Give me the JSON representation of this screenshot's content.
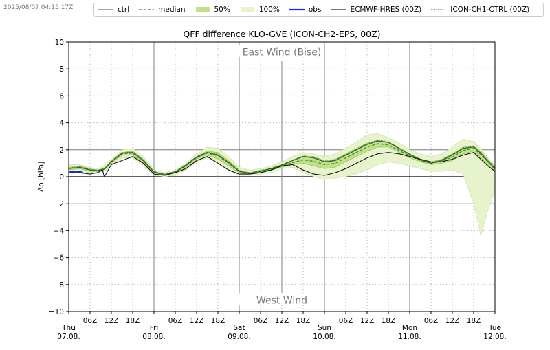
{
  "timestamp": "2025/08/07 04:15:17Z",
  "legend": [
    {
      "key": "ctrl",
      "label": "ctrl",
      "style": "line",
      "color": "#4a8a4a"
    },
    {
      "key": "median",
      "label": "median",
      "style": "dashed",
      "color": "#3a8a2a"
    },
    {
      "key": "p50",
      "label": "50%",
      "style": "patch",
      "color": "#c2e08a"
    },
    {
      "key": "p100",
      "label": "100%",
      "style": "patch",
      "color": "#e6f3cc"
    },
    {
      "key": "obs",
      "label": "obs",
      "style": "line",
      "color": "#1f2fbf"
    },
    {
      "key": "ecmwf",
      "label": "ECMWF-HRES (00Z)",
      "style": "line",
      "color": "#222222"
    },
    {
      "key": "ich1",
      "label": "ICON-CH1-CTRL (00Z)",
      "style": "dotted",
      "color": "#666666"
    }
  ],
  "chart_data": {
    "type": "line",
    "title": "QFF difference KLO-GVE (ICON-CH2-EPS, 00Z)",
    "ylabel": "Δp [hPa]",
    "xlabel": "",
    "ylim": [
      -10,
      10
    ],
    "yticks": [
      -10,
      -8,
      -6,
      -4,
      -2,
      0,
      2,
      4,
      6,
      8,
      10
    ],
    "xlim": [
      0,
      120
    ],
    "x_units": "hours after Thu 07.08. 00Z",
    "day_ticks": [
      {
        "x": 0,
        "day": "Thu",
        "date": "07.08."
      },
      {
        "x": 24,
        "day": "Fri",
        "date": "08.08."
      },
      {
        "x": 48,
        "day": "Sat",
        "date": "09.08."
      },
      {
        "x": 72,
        "day": "Sun",
        "date": "10.08."
      },
      {
        "x": 96,
        "day": "Mon",
        "date": "11.08."
      },
      {
        "x": 120,
        "day": "Tue",
        "date": "12.08."
      }
    ],
    "hour_ticks": [
      {
        "x": 6,
        "label": "06Z"
      },
      {
        "x": 12,
        "label": "12Z"
      },
      {
        "x": 18,
        "label": "18Z"
      },
      {
        "x": 30,
        "label": "06Z"
      },
      {
        "x": 36,
        "label": "12Z"
      },
      {
        "x": 42,
        "label": "18Z"
      },
      {
        "x": 54,
        "label": "06Z"
      },
      {
        "x": 60,
        "label": "12Z"
      },
      {
        "x": 66,
        "label": "18Z"
      },
      {
        "x": 78,
        "label": "06Z"
      },
      {
        "x": 84,
        "label": "12Z"
      },
      {
        "x": 90,
        "label": "18Z"
      },
      {
        "x": 102,
        "label": "06Z"
      },
      {
        "x": 108,
        "label": "12Z"
      },
      {
        "x": 114,
        "label": "18Z"
      }
    ],
    "annotations": [
      {
        "text": "East Wind (Bise)",
        "x": 60,
        "y": 9.2
      },
      {
        "text": "West Wind",
        "x": 60,
        "y": -9.2
      }
    ],
    "reference_lines": [
      2,
      0,
      -2
    ],
    "grid": true,
    "series": [
      {
        "name": "100%",
        "kind": "band",
        "x": [
          0,
          3,
          6,
          8,
          10,
          12,
          15,
          18,
          21,
          24,
          27,
          30,
          33,
          36,
          39,
          42,
          45,
          48,
          51,
          54,
          57,
          60,
          63,
          66,
          69,
          72,
          75,
          78,
          81,
          84,
          87,
          90,
          93,
          96,
          99,
          102,
          105,
          108,
          111,
          114,
          116,
          118,
          120
        ],
        "lower": [
          0.3,
          0.4,
          0.3,
          0.3,
          0.4,
          0.8,
          1.4,
          1.4,
          0.8,
          0.1,
          0.0,
          0.1,
          0.5,
          1.1,
          1.4,
          1.0,
          0.5,
          0.1,
          0.1,
          0.2,
          0.3,
          0.6,
          0.7,
          0.3,
          0.0,
          -0.2,
          -0.1,
          0.0,
          0.2,
          0.5,
          0.9,
          1.1,
          1.0,
          0.8,
          0.6,
          0.4,
          0.4,
          0.5,
          0.2,
          -2.0,
          -4.4,
          -2.5,
          -1.0
        ],
        "upper": [
          0.9,
          0.9,
          0.7,
          0.6,
          0.8,
          1.3,
          2.0,
          2.1,
          1.5,
          0.5,
          0.3,
          0.5,
          1.0,
          1.7,
          2.2,
          2.1,
          1.5,
          0.7,
          0.5,
          0.6,
          0.8,
          1.1,
          1.5,
          1.8,
          1.7,
          1.5,
          1.7,
          2.1,
          2.6,
          3.1,
          3.2,
          2.9,
          2.5,
          2.0,
          1.7,
          1.5,
          1.7,
          2.2,
          2.8,
          2.6,
          2.1,
          1.4,
          0.8
        ]
      },
      {
        "name": "50%",
        "kind": "band",
        "x": [
          0,
          3,
          6,
          8,
          10,
          12,
          15,
          18,
          21,
          24,
          27,
          30,
          33,
          36,
          39,
          42,
          45,
          48,
          51,
          54,
          57,
          60,
          63,
          66,
          69,
          72,
          75,
          78,
          81,
          84,
          87,
          90,
          93,
          96,
          99,
          102,
          105,
          108,
          111,
          114,
          116,
          118,
          120
        ],
        "lower": [
          0.5,
          0.6,
          0.4,
          0.4,
          0.5,
          1.0,
          1.6,
          1.6,
          1.0,
          0.3,
          0.1,
          0.3,
          0.7,
          1.3,
          1.6,
          1.3,
          0.8,
          0.3,
          0.2,
          0.3,
          0.5,
          0.7,
          0.9,
          1.0,
          0.8,
          0.6,
          0.7,
          1.1,
          1.5,
          1.9,
          2.2,
          2.2,
          1.8,
          1.4,
          1.1,
          0.9,
          1.0,
          1.2,
          1.7,
          1.9,
          1.4,
          0.9,
          0.4
        ],
        "upper": [
          0.7,
          0.8,
          0.6,
          0.5,
          0.6,
          1.2,
          1.8,
          1.9,
          1.3,
          0.4,
          0.2,
          0.4,
          0.9,
          1.5,
          1.9,
          1.8,
          1.2,
          0.5,
          0.3,
          0.5,
          0.6,
          0.9,
          1.2,
          1.5,
          1.5,
          1.2,
          1.3,
          1.7,
          2.1,
          2.5,
          2.7,
          2.5,
          2.1,
          1.7,
          1.3,
          1.1,
          1.3,
          1.7,
          2.2,
          2.3,
          1.9,
          1.3,
          0.7
        ]
      },
      {
        "name": "median",
        "kind": "line",
        "style": "dashed",
        "x": [
          0,
          3,
          6,
          8,
          10,
          12,
          15,
          18,
          21,
          24,
          27,
          30,
          33,
          36,
          39,
          42,
          45,
          48,
          51,
          54,
          57,
          60,
          63,
          66,
          69,
          72,
          75,
          78,
          81,
          84,
          87,
          90,
          93,
          96,
          99,
          102,
          105,
          108,
          111,
          114,
          116,
          118,
          120
        ],
        "values": [
          0.6,
          0.7,
          0.5,
          0.45,
          0.55,
          1.1,
          1.7,
          1.75,
          1.15,
          0.35,
          0.15,
          0.35,
          0.8,
          1.4,
          1.75,
          1.55,
          1.0,
          0.4,
          0.25,
          0.4,
          0.55,
          0.8,
          1.05,
          1.25,
          1.15,
          0.9,
          1.0,
          1.4,
          1.8,
          2.2,
          2.45,
          2.35,
          1.95,
          1.55,
          1.2,
          1.0,
          1.15,
          1.45,
          1.95,
          2.1,
          1.65,
          1.1,
          0.55
        ]
      },
      {
        "name": "ctrl",
        "kind": "line",
        "style": "solid",
        "x": [
          0,
          3,
          6,
          8,
          10,
          12,
          15,
          18,
          21,
          24,
          27,
          30,
          33,
          36,
          39,
          42,
          45,
          48,
          51,
          54,
          57,
          60,
          63,
          66,
          69,
          72,
          75,
          78,
          81,
          84,
          87,
          90,
          93,
          96,
          99,
          102,
          105,
          108,
          111,
          114,
          116,
          118,
          120
        ],
        "values": [
          0.6,
          0.7,
          0.5,
          0.45,
          0.55,
          1.1,
          1.75,
          1.8,
          1.2,
          0.35,
          0.15,
          0.35,
          0.85,
          1.45,
          1.8,
          1.6,
          1.05,
          0.4,
          0.25,
          0.4,
          0.6,
          0.85,
          1.2,
          1.5,
          1.4,
          1.1,
          1.2,
          1.6,
          2.0,
          2.4,
          2.65,
          2.55,
          2.1,
          1.65,
          1.25,
          1.0,
          1.2,
          1.6,
          2.1,
          2.2,
          1.75,
          1.15,
          0.6
        ]
      },
      {
        "name": "ICON-CH1-CTRL (00Z)",
        "kind": "line",
        "style": "dotted",
        "x": [
          0,
          3,
          6,
          8,
          10,
          12,
          15,
          18,
          21,
          24,
          27,
          30,
          33,
          36,
          39,
          42,
          45,
          48,
          51,
          54,
          57,
          60,
          63,
          66,
          69,
          72,
          75,
          78,
          81,
          84,
          87,
          90,
          93,
          96,
          99,
          102,
          105,
          108,
          111,
          114,
          116,
          118,
          120
        ],
        "values": [
          0.65,
          0.75,
          0.55,
          0.5,
          0.6,
          1.15,
          1.8,
          1.85,
          1.25,
          0.4,
          0.2,
          0.4,
          0.9,
          1.5,
          1.85,
          1.65,
          1.1,
          0.45,
          0.3,
          0.45,
          0.65,
          0.9,
          1.25,
          1.55,
          1.45,
          1.15,
          1.25,
          1.65,
          2.05,
          2.45,
          2.7,
          2.6,
          2.15,
          1.7,
          1.3,
          1.05,
          1.25,
          1.65,
          2.15,
          2.25,
          1.8,
          1.2,
          0.65
        ]
      },
      {
        "name": "ECMWF-HRES (00Z)",
        "kind": "line",
        "style": "solid",
        "x": [
          0,
          3,
          6,
          8,
          9.5,
          10,
          12,
          15,
          18,
          21,
          24,
          27,
          30,
          33,
          36,
          39,
          42,
          45,
          48,
          51,
          54,
          57,
          60,
          63,
          66,
          69,
          72,
          75,
          78,
          81,
          84,
          87,
          90,
          93,
          96,
          99,
          102,
          105,
          108,
          111,
          114,
          116,
          118,
          120
        ],
        "values": [
          0.3,
          0.3,
          0.2,
          0.3,
          0.5,
          0.0,
          0.9,
          1.2,
          1.5,
          1.0,
          0.2,
          0.1,
          0.3,
          0.6,
          1.2,
          1.5,
          1.0,
          0.5,
          0.2,
          0.2,
          0.3,
          0.5,
          0.8,
          0.9,
          0.5,
          0.2,
          0.1,
          0.3,
          0.6,
          1.0,
          1.4,
          1.7,
          1.8,
          1.7,
          1.5,
          1.3,
          1.1,
          1.1,
          1.3,
          1.6,
          1.8,
          1.3,
          0.8,
          0.4
        ]
      },
      {
        "name": "obs",
        "kind": "line",
        "style": "solid",
        "x": [
          0,
          1,
          2,
          3,
          4
        ],
        "values": [
          0.3,
          0.4,
          0.35,
          0.4,
          0.3
        ]
      }
    ]
  }
}
